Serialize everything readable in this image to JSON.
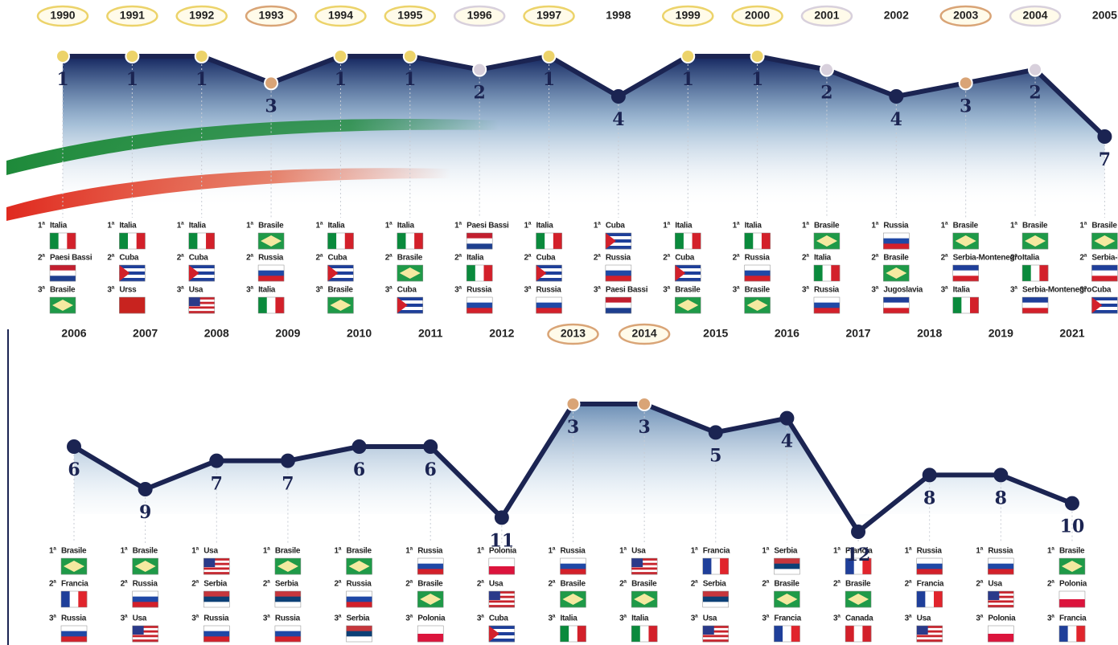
{
  "chart_data": [
    {
      "type": "line",
      "categories": [
        "1990",
        "1991",
        "1992",
        "1993",
        "1994",
        "1995",
        "1996",
        "1997",
        "1998",
        "1999",
        "2000",
        "2001",
        "2002",
        "2003",
        "2004",
        "2005"
      ],
      "values": [
        1,
        1,
        1,
        3,
        1,
        1,
        2,
        1,
        4,
        1,
        1,
        2,
        4,
        3,
        2,
        7
      ],
      "ylim": [
        7,
        1
      ],
      "color": "#1b2452",
      "podiums": [
        [
          "Italia",
          "Paesi Bassi",
          "Brasile"
        ],
        [
          "Italia",
          "Cuba",
          "Urss"
        ],
        [
          "Italia",
          "Cuba",
          "Usa"
        ],
        [
          "Brasile",
          "Russia",
          "Italia"
        ],
        [
          "Italia",
          "Cuba",
          "Brasile"
        ],
        [
          "Italia",
          "Brasile",
          "Cuba"
        ],
        [
          "Paesi Bassi",
          "Italia",
          "Russia"
        ],
        [
          "Italia",
          "Cuba",
          "Russia"
        ],
        [
          "Cuba",
          "Russia",
          "Paesi Bassi"
        ],
        [
          "Italia",
          "Cuba",
          "Brasile"
        ],
        [
          "Italia",
          "Russia",
          "Brasile"
        ],
        [
          "Brasile",
          "Italia",
          "Russia"
        ],
        [
          "Russia",
          "Brasile",
          "Jugoslavia"
        ],
        [
          "Brasile",
          "Serbia-Montenegro",
          "Italia"
        ],
        [
          "Brasile",
          "Italia",
          "Serbia-Montenegro"
        ],
        [
          "Brasile",
          "Serbia-Montenegro",
          "Cuba"
        ]
      ]
    },
    {
      "type": "line",
      "categories": [
        "2006",
        "2007",
        "2008",
        "2009",
        "2010",
        "2011",
        "2012",
        "2013",
        "2014",
        "2015",
        "2016",
        "2017",
        "2018",
        "2019",
        "2021"
      ],
      "values": [
        6,
        9,
        7,
        7,
        6,
        6,
        11,
        3,
        3,
        5,
        4,
        12,
        8,
        8,
        10
      ],
      "ylim": [
        12,
        3
      ],
      "color": "#1b2452",
      "podiums": [
        [
          "Brasile",
          "Francia",
          "Russia"
        ],
        [
          "Brasile",
          "Russia",
          "Usa"
        ],
        [
          "Usa",
          "Serbia",
          "Russia"
        ],
        [
          "Brasile",
          "Serbia",
          "Russia"
        ],
        [
          "Brasile",
          "Russia",
          "Serbia"
        ],
        [
          "Russia",
          "Brasile",
          "Polonia"
        ],
        [
          "Polonia",
          "Usa",
          "Cuba"
        ],
        [
          "Russia",
          "Brasile",
          "Italia"
        ],
        [
          "Usa",
          "Brasile",
          "Italia"
        ],
        [
          "Francia",
          "Serbia",
          "Usa"
        ],
        [
          "Serbia",
          "Brasile",
          "Francia"
        ],
        [
          "Francia",
          "Brasile",
          "Canada"
        ],
        [
          "Russia",
          "Francia",
          "Usa"
        ],
        [
          "Russia",
          "Usa",
          "Polonia"
        ],
        [
          "Brasile",
          "Polonia",
          "Francia"
        ]
      ]
    }
  ],
  "places": [
    "1ª",
    "2ª",
    "3ª"
  ],
  "medal_colors": [
    "#ecd36a",
    "#d8d0dc",
    "#d9a476"
  ],
  "flags": {
    "Italia": {
      "dir": "v",
      "stripes": [
        "#0a8a3c",
        "#ffffff",
        "#d3202a"
      ]
    },
    "Paesi Bassi": {
      "dir": "h",
      "stripes": [
        "#c21f2f",
        "#ffffff",
        "#1e3f8f"
      ]
    },
    "Brasile": {
      "dir": "h",
      "stripes": [
        "#1f9a48"
      ],
      "diamond": "#f5e9a0"
    },
    "Cuba": {
      "dir": "h",
      "stripes": [
        "#1e3f9a",
        "#ffffff",
        "#1e3f9a",
        "#ffffff",
        "#1e3f9a"
      ],
      "triangle": "#d3202a"
    },
    "Urss": {
      "dir": "h",
      "stripes": [
        "#c8231f"
      ]
    },
    "Usa": {
      "dir": "h",
      "stripes": [
        "#c8232c",
        "#ffffff",
        "#c8232c",
        "#ffffff",
        "#c8232c",
        "#ffffff",
        "#c8232c"
      ],
      "canton": "#2a3a8a"
    },
    "Russia": {
      "dir": "h",
      "stripes": [
        "#ffffff",
        "#1f48a6",
        "#d3202a"
      ]
    },
    "Serbia": {
      "dir": "h",
      "stripes": [
        "#c6363c",
        "#0c4076",
        "#ffffff"
      ]
    },
    "Serbia-Montenegro": {
      "dir": "h",
      "stripes": [
        "#1f3f9a",
        "#ffffff",
        "#d3202a"
      ]
    },
    "Jugoslavia": {
      "dir": "h",
      "stripes": [
        "#1f3f9a",
        "#ffffff",
        "#d3202a"
      ]
    },
    "Polonia": {
      "dir": "h",
      "stripes": [
        "#ffffff",
        "#dc143c"
      ]
    },
    "Francia": {
      "dir": "v",
      "stripes": [
        "#1f3f9a",
        "#ffffff",
        "#e1242c"
      ]
    },
    "Canada": {
      "dir": "v",
      "stripes": [
        "#d3202a",
        "#ffffff",
        "#d3202a"
      ]
    }
  }
}
